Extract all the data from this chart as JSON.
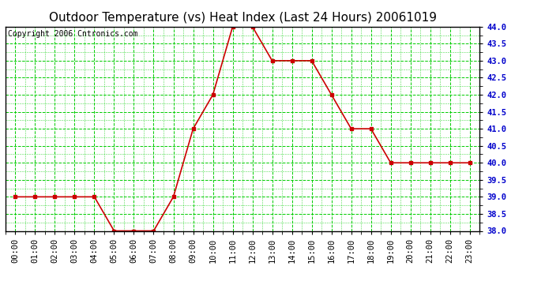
{
  "title": "Outdoor Temperature (vs) Heat Index (Last 24 Hours) 20061019",
  "copyright": "Copyright 2006 Cntronics.com",
  "x_labels": [
    "00:00",
    "01:00",
    "02:00",
    "03:00",
    "04:00",
    "05:00",
    "06:00",
    "07:00",
    "08:00",
    "09:00",
    "10:00",
    "11:00",
    "12:00",
    "13:00",
    "14:00",
    "15:00",
    "16:00",
    "17:00",
    "18:00",
    "19:00",
    "20:00",
    "21:00",
    "22:00",
    "23:00"
  ],
  "y_values": [
    39.0,
    39.0,
    39.0,
    39.0,
    39.0,
    38.0,
    38.0,
    38.0,
    39.0,
    41.0,
    42.0,
    44.0,
    44.0,
    43.0,
    43.0,
    43.0,
    42.0,
    41.0,
    41.0,
    40.0,
    40.0,
    40.0,
    40.0,
    40.0
  ],
  "line_color": "#cc0000",
  "marker_color": "#cc0000",
  "bg_color": "#ffffff",
  "plot_bg_color": "#ffffff",
  "grid_color": "#00cc00",
  "ylim_min": 38.0,
  "ylim_max": 44.0,
  "y_tick_major": 0.5,
  "title_fontsize": 11,
  "copyright_fontsize": 7,
  "tick_fontsize": 7.5
}
